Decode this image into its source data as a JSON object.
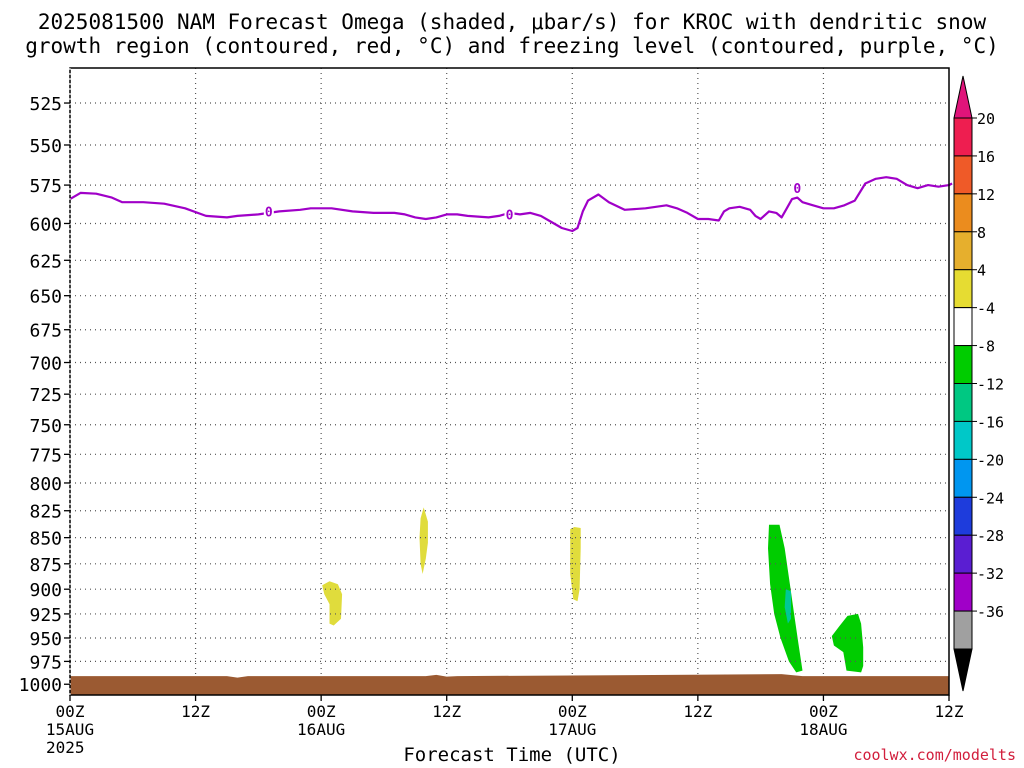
{
  "chart_data": {
    "type": "heatmap",
    "title": "2025081500 NAM Forecast Omega (shaded, μbar/s) for KROC with dendritic snow",
    "subtitle": "growth region (contoured, red, °C) and freezing level (contoured, purple, °C)",
    "xlabel": "Forecast Time (UTC)",
    "ylabel": "",
    "credit": "coolwx.com/modelts",
    "x_range_hours": [
      0,
      84
    ],
    "y_range_hpa": [
      1012,
      505
    ],
    "y_scale": "log-pressure",
    "grid": true,
    "y_ticks": [
      525,
      550,
      575,
      600,
      625,
      650,
      675,
      700,
      725,
      750,
      775,
      800,
      825,
      850,
      875,
      900,
      925,
      950,
      975,
      1000
    ],
    "x_ticks": [
      {
        "hour": 0,
        "label": "00Z",
        "sub": "15AUG",
        "sub2": "2025"
      },
      {
        "hour": 12,
        "label": "12Z",
        "sub": "",
        "sub2": ""
      },
      {
        "hour": 24,
        "label": "00Z",
        "sub": "16AUG",
        "sub2": ""
      },
      {
        "hour": 36,
        "label": "12Z",
        "sub": "",
        "sub2": ""
      },
      {
        "hour": 48,
        "label": "00Z",
        "sub": "17AUG",
        "sub2": ""
      },
      {
        "hour": 60,
        "label": "12Z",
        "sub": "",
        "sub2": ""
      },
      {
        "hour": 72,
        "label": "00Z",
        "sub": "18AUG",
        "sub2": ""
      },
      {
        "hour": 84,
        "label": "12Z",
        "sub": "",
        "sub2": ""
      }
    ],
    "freezing_level": {
      "label": "0",
      "color": "#a000c8",
      "label_points": [
        [
          19,
          592
        ],
        [
          42,
          594
        ],
        [
          69.5,
          577
        ]
      ],
      "points": [
        [
          0,
          584
        ],
        [
          1,
          580
        ],
        [
          2.5,
          580.5
        ],
        [
          4,
          583
        ],
        [
          5,
          586
        ],
        [
          7,
          586
        ],
        [
          9,
          587
        ],
        [
          11,
          590
        ],
        [
          13,
          595
        ],
        [
          15,
          596
        ],
        [
          16,
          595
        ],
        [
          18,
          594
        ],
        [
          20,
          592
        ],
        [
          22,
          591
        ],
        [
          23,
          590
        ],
        [
          25,
          590
        ],
        [
          27,
          592
        ],
        [
          29,
          593
        ],
        [
          31,
          593
        ],
        [
          32,
          594
        ],
        [
          33,
          596
        ],
        [
          34,
          597
        ],
        [
          35,
          596
        ],
        [
          36,
          594
        ],
        [
          37,
          594
        ],
        [
          38,
          595
        ],
        [
          40,
          596
        ],
        [
          41,
          595
        ],
        [
          42,
          593
        ],
        [
          43,
          594
        ],
        [
          44,
          593
        ],
        [
          45,
          595
        ],
        [
          46,
          599
        ],
        [
          47,
          603
        ],
        [
          48,
          605
        ],
        [
          48.5,
          603
        ],
        [
          49,
          592
        ],
        [
          49.5,
          585
        ],
        [
          50.5,
          581
        ],
        [
          51.5,
          586
        ],
        [
          53,
          591
        ],
        [
          55,
          590
        ],
        [
          57,
          588
        ],
        [
          58,
          590
        ],
        [
          59,
          593
        ],
        [
          60,
          597
        ],
        [
          61,
          597
        ],
        [
          62,
          598
        ],
        [
          62.5,
          592
        ],
        [
          63,
          590
        ],
        [
          64,
          589
        ],
        [
          65,
          591
        ],
        [
          65.5,
          595
        ],
        [
          66,
          597
        ],
        [
          66.8,
          592
        ],
        [
          67.5,
          593
        ],
        [
          68,
          596
        ],
        [
          68.5,
          590
        ],
        [
          69,
          584
        ],
        [
          69.5,
          583
        ],
        [
          70,
          586
        ],
        [
          71,
          588
        ],
        [
          72,
          590
        ],
        [
          73,
          590
        ],
        [
          74,
          588
        ],
        [
          75,
          585
        ],
        [
          76,
          574
        ],
        [
          77,
          571
        ],
        [
          78,
          570
        ],
        [
          79,
          571
        ],
        [
          80,
          575
        ],
        [
          81,
          577
        ],
        [
          82,
          575
        ],
        [
          83,
          576
        ],
        [
          84,
          575
        ],
        [
          84.3,
          574
        ]
      ]
    },
    "omega_regions": [
      {
        "color": "#e0dc3c",
        "points": [
          [
            24.1,
            896
          ],
          [
            24.8,
            892
          ],
          [
            25.6,
            895
          ],
          [
            26,
            905
          ],
          [
            25.9,
            930
          ],
          [
            25.2,
            937
          ],
          [
            24.8,
            935
          ],
          [
            24.8,
            915
          ],
          [
            24.3,
            905
          ]
        ]
      },
      {
        "color": "#e0dc3c",
        "points": [
          [
            33.5,
            832
          ],
          [
            33.8,
            822
          ],
          [
            34.2,
            835
          ],
          [
            34.2,
            855
          ],
          [
            34.0,
            870
          ],
          [
            33.7,
            885
          ],
          [
            33.5,
            875
          ],
          [
            33.4,
            850
          ]
        ]
      },
      {
        "color": "#e0dc3c",
        "points": [
          [
            47.8,
            842
          ],
          [
            48.2,
            840
          ],
          [
            48.8,
            841
          ],
          [
            48.8,
            860
          ],
          [
            48.7,
            900
          ],
          [
            48.5,
            912
          ],
          [
            48.1,
            910
          ],
          [
            47.8,
            885
          ]
        ]
      },
      {
        "color": "#00cc00",
        "points": [
          [
            66.8,
            838
          ],
          [
            67.8,
            838
          ],
          [
            68.3,
            860
          ],
          [
            68.8,
            895
          ],
          [
            69.2,
            925
          ],
          [
            69.6,
            955
          ],
          [
            70.0,
            985
          ],
          [
            69.4,
            987
          ],
          [
            68.7,
            975
          ],
          [
            67.9,
            950
          ],
          [
            67.3,
            925
          ],
          [
            66.9,
            895
          ],
          [
            66.7,
            860
          ]
        ]
      },
      {
        "color": "#00c896",
        "points": [
          [
            68.4,
            900
          ],
          [
            68.9,
            902
          ],
          [
            68.9,
            930
          ],
          [
            68.6,
            935
          ],
          [
            68.3,
            918
          ]
        ]
      },
      {
        "color": "#00cc00",
        "points": [
          [
            73.5,
            938
          ],
          [
            74.3,
            927
          ],
          [
            75.3,
            925
          ],
          [
            75.6,
            935
          ],
          [
            75.8,
            960
          ],
          [
            75.8,
            980
          ],
          [
            75.6,
            987
          ],
          [
            74.2,
            985
          ],
          [
            73.9,
            965
          ],
          [
            73.0,
            958
          ],
          [
            72.8,
            948
          ]
        ]
      }
    ],
    "terrain": {
      "color": "#9b5a32",
      "surface_pressure_hpa": 991
    },
    "colorbar": {
      "labels": [
        "20",
        "16",
        "12",
        "8",
        "4",
        "-4",
        "-8",
        "-12",
        "-16",
        "-20",
        "-24",
        "-28",
        "-32",
        "-36"
      ],
      "colors": [
        "#ee1e50",
        "#ef5a28",
        "#eb8c1e",
        "#e6af2d",
        "#e6dc32",
        "#ffffff",
        "#00cc00",
        "#00c882",
        "#00c8c8",
        "#0096f0",
        "#1e3cdc",
        "#5a1ed2",
        "#a000c8",
        "#a0a0a0"
      ],
      "top_arrow_color": "#e0147a",
      "bottom_arrow_color": "#000000"
    }
  }
}
